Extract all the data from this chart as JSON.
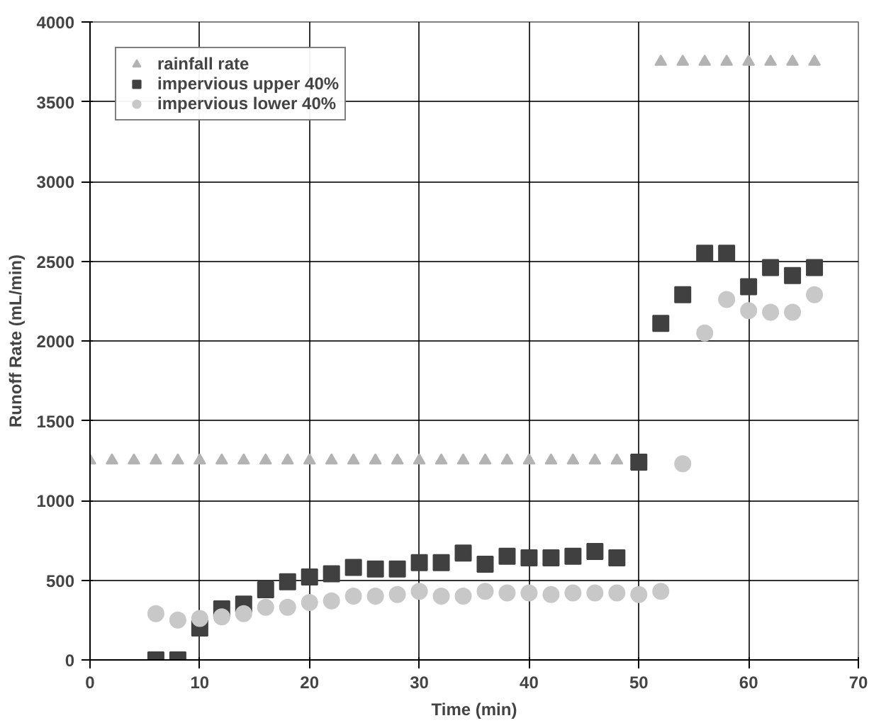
{
  "chart_data": {
    "type": "scatter",
    "xlabel": "Time (min)",
    "ylabel": "Runoff Rate (mL/min)",
    "xlim": [
      0,
      70
    ],
    "ylim": [
      0,
      4000
    ],
    "xticks": [
      0,
      10,
      20,
      30,
      40,
      50,
      60,
      70
    ],
    "yticks": [
      0,
      500,
      1000,
      1500,
      2000,
      2500,
      3000,
      3500,
      4000
    ],
    "grid": true,
    "legend": "top left",
    "series": [
      {
        "name": "rainfall rate",
        "color": "#b3b3b3",
        "marker": "triangle",
        "x": [
          0,
          2,
          4,
          6,
          8,
          10,
          12,
          14,
          16,
          18,
          20,
          22,
          24,
          26,
          28,
          30,
          32,
          34,
          36,
          38,
          40,
          42,
          44,
          46,
          48,
          52,
          54,
          56,
          58,
          60,
          62,
          64,
          66
        ],
        "values": [
          1250,
          1250,
          1250,
          1250,
          1250,
          1250,
          1250,
          1250,
          1250,
          1250,
          1250,
          1250,
          1250,
          1250,
          1250,
          1250,
          1250,
          1250,
          1250,
          1250,
          1250,
          1250,
          1250,
          1250,
          1250,
          3750,
          3750,
          3750,
          3750,
          3750,
          3750,
          3750,
          3750
        ]
      },
      {
        "name": "impervious upper 40%",
        "color": "#404040",
        "marker": "square",
        "x": [
          6,
          8,
          10,
          12,
          14,
          16,
          18,
          20,
          22,
          24,
          26,
          28,
          30,
          32,
          34,
          36,
          38,
          40,
          42,
          44,
          46,
          48,
          50,
          52,
          54,
          56,
          58,
          60,
          62,
          64,
          66
        ],
        "values": [
          0,
          0,
          200,
          320,
          350,
          440,
          490,
          520,
          540,
          580,
          570,
          570,
          610,
          610,
          670,
          600,
          650,
          640,
          640,
          650,
          680,
          640,
          1240,
          2110,
          2290,
          2550,
          2550,
          2340,
          2460,
          2410,
          2460
        ]
      },
      {
        "name": "impervious lower 40%",
        "color": "#c8c8c8",
        "marker": "circle",
        "x": [
          6,
          8,
          10,
          12,
          14,
          16,
          18,
          20,
          22,
          24,
          26,
          28,
          30,
          32,
          34,
          36,
          38,
          40,
          42,
          44,
          46,
          48,
          50,
          52,
          54,
          56,
          58,
          60,
          62,
          64,
          66
        ],
        "values": [
          290,
          250,
          260,
          270,
          290,
          330,
          330,
          360,
          370,
          400,
          400,
          410,
          430,
          400,
          400,
          430,
          420,
          420,
          410,
          420,
          420,
          420,
          410,
          430,
          1230,
          2050,
          2260,
          2190,
          2180,
          2180,
          2290
        ]
      }
    ]
  }
}
